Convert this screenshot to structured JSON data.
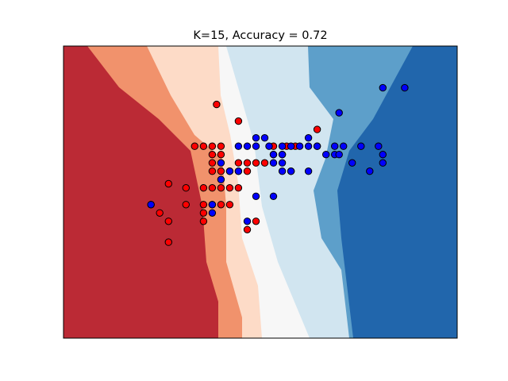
{
  "chart_data": {
    "type": "scatter",
    "title": "K=15, Accuracy = 0.72",
    "xlabel": "",
    "ylabel": "",
    "xticks": "none",
    "yticks": "none",
    "grid": false,
    "legend": "none",
    "xlim": [
      -2.2,
      2.3
    ],
    "ylim": [
      -1.9,
      1.6
    ],
    "background": "decision regions of a K-nearest-neighbours classifier (red to blue diverging colormap, 6 levels)",
    "region_colors": [
      "#b2182b",
      "#ef8a62",
      "#fddbc7",
      "#f7f7f7",
      "#d1e5f0",
      "#67a9cf",
      "#2166ac"
    ],
    "series": [
      {
        "class": 0,
        "color": "#ff0000",
        "x": [
          -0.45,
          -0.2,
          0.2,
          -0.7,
          -0.6,
          -0.5,
          -0.5,
          -0.5,
          -0.4,
          -0.4,
          -0.2,
          -0.1,
          0.0,
          0.1,
          0.2,
          -1.0,
          -0.5,
          -0.4,
          -0.3,
          -0.2,
          -0.1,
          -0.8,
          -0.6,
          -0.5,
          -0.4,
          -0.3,
          -0.2,
          -1.2,
          -0.8,
          -0.6,
          -0.5,
          -0.4,
          -0.3,
          -1.1,
          -0.6,
          -1.0,
          -0.6,
          0.0,
          -0.1,
          -1.0,
          0.3,
          0.35,
          0.45,
          0.7
        ],
        "y": [
          0.9,
          0.7,
          0.3,
          0.4,
          0.4,
          0.4,
          0.3,
          0.2,
          0.3,
          0.4,
          0.2,
          0.2,
          0.2,
          0.2,
          0.4,
          -0.05,
          0.1,
          0.1,
          0.1,
          0.1,
          0.1,
          -0.1,
          -0.1,
          -0.1,
          -0.1,
          -0.1,
          -0.1,
          -0.3,
          -0.3,
          -0.3,
          -0.3,
          -0.3,
          -0.3,
          -0.4,
          -0.4,
          -0.5,
          -0.5,
          -0.5,
          -0.6,
          -0.75,
          0.3,
          0.4,
          0.4,
          0.6
        ]
      },
      {
        "class": 1,
        "color": "#0000ff",
        "x": [
          1.45,
          1.7,
          0.95,
          0.0,
          0.1,
          0.6,
          0.15,
          0.2,
          0.3,
          0.7,
          0.8,
          0.9,
          0.95,
          0.3,
          0.4,
          0.5,
          0.6,
          0.7,
          0.9,
          1.0,
          1.2,
          1.4,
          1.45,
          -0.2,
          -0.1,
          0.0,
          -0.4,
          -0.3,
          0.2,
          0.3,
          0.4,
          1.1,
          1.3,
          1.45,
          -0.2,
          0.3,
          0.4,
          0.6,
          0.0,
          0.2,
          -0.5,
          -1.2,
          -0.4,
          -0.1,
          -0.5
        ],
        "y": [
          1.1,
          1.1,
          0.8,
          0.5,
          0.5,
          0.5,
          0.4,
          0.3,
          0.3,
          0.4,
          0.3,
          0.3,
          0.3,
          0.4,
          0.4,
          0.4,
          0.4,
          0.4,
          0.4,
          0.4,
          0.4,
          0.4,
          0.3,
          0.4,
          0.4,
          0.4,
          0.2,
          0.1,
          0.2,
          0.2,
          0.1,
          0.2,
          0.1,
          0.2,
          0.1,
          0.1,
          0.1,
          0.1,
          -0.2,
          -0.2,
          -0.3,
          -0.3,
          0.0,
          -0.5,
          -0.4
        ]
      }
    ]
  }
}
